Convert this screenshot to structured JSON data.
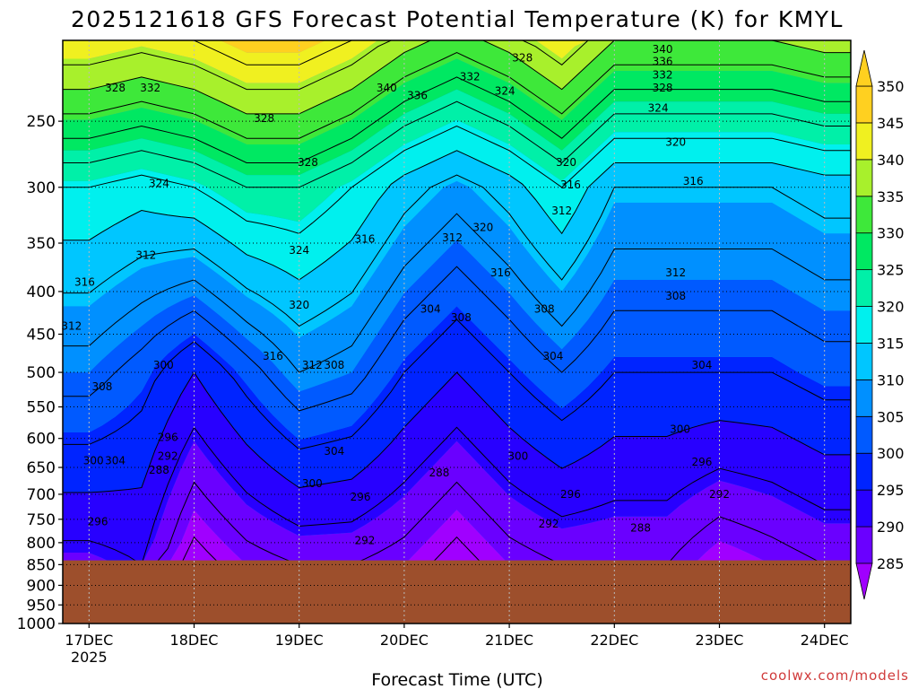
{
  "chart_data": {
    "type": "heatmap",
    "title": "2025121618 GFS Forecast Potential Temperature (K) for KMYL",
    "xlabel": "Forecast Time (UTC)",
    "ylabel": "",
    "credit": "coolwx.com/models",
    "x_ticks": [
      "17DEC\n2025",
      "18DEC",
      "19DEC",
      "20DEC",
      "21DEC",
      "22DEC",
      "23DEC",
      "24DEC"
    ],
    "x_range_days": [
      "2025-12-16T18",
      "2025-12-24T06"
    ],
    "y_ticks": [
      250,
      300,
      350,
      400,
      450,
      500,
      550,
      600,
      650,
      700,
      750,
      800,
      850,
      900,
      950,
      1000
    ],
    "y_range_hPa": [
      1000,
      200
    ],
    "y_scale": "log-pressure",
    "grid": "dotted",
    "ground_level_hPa": 840,
    "ground_color": "#9d4f2c",
    "colorbar": {
      "ticks": [
        285,
        290,
        295,
        300,
        305,
        310,
        315,
        320,
        325,
        330,
        335,
        340,
        345,
        350
      ],
      "colors": [
        "#a000ff",
        "#6a00ff",
        "#2800ff",
        "#0024ff",
        "#005aff",
        "#0090ff",
        "#00c6ff",
        "#00f0ee",
        "#00f0a8",
        "#00e862",
        "#3ee83a",
        "#a8f02c",
        "#f0f020",
        "#ffd020"
      ],
      "extend": "both"
    },
    "series": [
      {
        "time": "17DEC 00",
        "theta_surface": 294,
        "theta_500": 310,
        "theta_300": 324
      },
      {
        "time": "17DEC 12",
        "theta_surface": 296,
        "theta_500": 306,
        "theta_300": 322
      },
      {
        "time": "18DEC 00",
        "theta_surface": 286,
        "theta_500": 300,
        "theta_300": 324
      },
      {
        "time": "18DEC 12",
        "theta_surface": 290,
        "theta_500": 306,
        "theta_300": 328
      },
      {
        "time": "19DEC 00",
        "theta_surface": 292,
        "theta_500": 312,
        "theta_300": 328
      },
      {
        "time": "19DEC 12",
        "theta_surface": 292,
        "theta_500": 310,
        "theta_300": 324
      },
      {
        "time": "20DEC 00",
        "theta_surface": 290,
        "theta_500": 304,
        "theta_300": 318
      },
      {
        "time": "20DEC 12",
        "theta_surface": 286,
        "theta_500": 300,
        "theta_300": 314
      },
      {
        "time": "21DEC 00",
        "theta_surface": 290,
        "theta_500": 304,
        "theta_300": 318
      },
      {
        "time": "21DEC 12",
        "theta_surface": 292,
        "theta_500": 308,
        "theta_300": 324
      },
      {
        "time": "22DEC 00",
        "theta_surface": 292,
        "theta_500": 304,
        "theta_300": 316
      },
      {
        "time": "22DEC 12",
        "theta_surface": 292,
        "theta_500": 304,
        "theta_300": 316
      },
      {
        "time": "23DEC 00",
        "theta_surface": 288,
        "theta_500": 304,
        "theta_300": 316
      },
      {
        "time": "23DEC 12",
        "theta_surface": 290,
        "theta_500": 304,
        "theta_300": 316
      },
      {
        "time": "24DEC 00",
        "theta_surface": 292,
        "theta_500": 306,
        "theta_300": 318
      }
    ],
    "contour_labels": [
      {
        "value": "328",
        "time_h": 12,
        "p": 228
      },
      {
        "value": "332",
        "time_h": 20,
        "p": 228
      },
      {
        "value": "328",
        "time_h": 46,
        "p": 248
      },
      {
        "value": "328",
        "time_h": 56,
        "p": 280
      },
      {
        "value": "340",
        "time_h": 74,
        "p": 228
      },
      {
        "value": "336",
        "time_h": 81,
        "p": 233
      },
      {
        "value": "332",
        "time_h": 93,
        "p": 221
      },
      {
        "value": "328",
        "time_h": 105,
        "p": 210
      },
      {
        "value": "324",
        "time_h": 101,
        "p": 230
      },
      {
        "value": "340",
        "time_h": 137,
        "p": 205
      },
      {
        "value": "336",
        "time_h": 137,
        "p": 212
      },
      {
        "value": "332",
        "time_h": 137,
        "p": 220
      },
      {
        "value": "328",
        "time_h": 137,
        "p": 228
      },
      {
        "value": "324",
        "time_h": 136,
        "p": 241
      },
      {
        "value": "320",
        "time_h": 140,
        "p": 265
      },
      {
        "value": "320",
        "time_h": 115,
        "p": 280
      },
      {
        "value": "316",
        "time_h": 116,
        "p": 298
      },
      {
        "value": "324",
        "time_h": 22,
        "p": 297
      },
      {
        "value": "316",
        "time_h": 144,
        "p": 295
      },
      {
        "value": "312",
        "time_h": 114,
        "p": 320
      },
      {
        "value": "320",
        "time_h": 96,
        "p": 335
      },
      {
        "value": "312",
        "time_h": 89,
        "p": 345
      },
      {
        "value": "316",
        "time_h": 69,
        "p": 346
      },
      {
        "value": "324",
        "time_h": 54,
        "p": 357
      },
      {
        "value": "312",
        "time_h": 19,
        "p": 362
      },
      {
        "value": "316",
        "time_h": 100,
        "p": 380
      },
      {
        "value": "316",
        "time_h": 5,
        "p": 390
      },
      {
        "value": "312",
        "time_h": 140,
        "p": 380
      },
      {
        "value": "308",
        "time_h": 140,
        "p": 405
      },
      {
        "value": "320",
        "time_h": 54,
        "p": 415
      },
      {
        "value": "308",
        "time_h": 110,
        "p": 420
      },
      {
        "value": "304",
        "time_h": 84,
        "p": 420
      },
      {
        "value": "308",
        "time_h": 91,
        "p": 430
      },
      {
        "value": "312",
        "time_h": 2,
        "p": 440
      },
      {
        "value": "316",
        "time_h": 48,
        "p": 478
      },
      {
        "value": "312",
        "time_h": 57,
        "p": 490
      },
      {
        "value": "308",
        "time_h": 62,
        "p": 490
      },
      {
        "value": "304",
        "time_h": 112,
        "p": 478
      },
      {
        "value": "304",
        "time_h": 146,
        "p": 490
      },
      {
        "value": "300",
        "time_h": 23,
        "p": 490
      },
      {
        "value": "308",
        "time_h": 9,
        "p": 520
      },
      {
        "value": "300",
        "time_h": 141,
        "p": 585
      },
      {
        "value": "296",
        "time_h": 24,
        "p": 598
      },
      {
        "value": "304",
        "time_h": 62,
        "p": 622
      },
      {
        "value": "300",
        "time_h": 104,
        "p": 630
      },
      {
        "value": "292",
        "time_h": 24,
        "p": 630
      },
      {
        "value": "300",
        "time_h": 7,
        "p": 638
      },
      {
        "value": "304",
        "time_h": 12,
        "p": 638
      },
      {
        "value": "288",
        "time_h": 22,
        "p": 655
      },
      {
        "value": "296",
        "time_h": 146,
        "p": 640
      },
      {
        "value": "288",
        "time_h": 86,
        "p": 660
      },
      {
        "value": "300",
        "time_h": 57,
        "p": 680
      },
      {
        "value": "296",
        "time_h": 68,
        "p": 705
      },
      {
        "value": "296",
        "time_h": 116,
        "p": 700
      },
      {
        "value": "292",
        "time_h": 150,
        "p": 700
      },
      {
        "value": "296",
        "time_h": 8,
        "p": 755
      },
      {
        "value": "292",
        "time_h": 111,
        "p": 760
      },
      {
        "value": "288",
        "time_h": 132,
        "p": 768
      },
      {
        "value": "292",
        "time_h": 69,
        "p": 795
      }
    ]
  }
}
